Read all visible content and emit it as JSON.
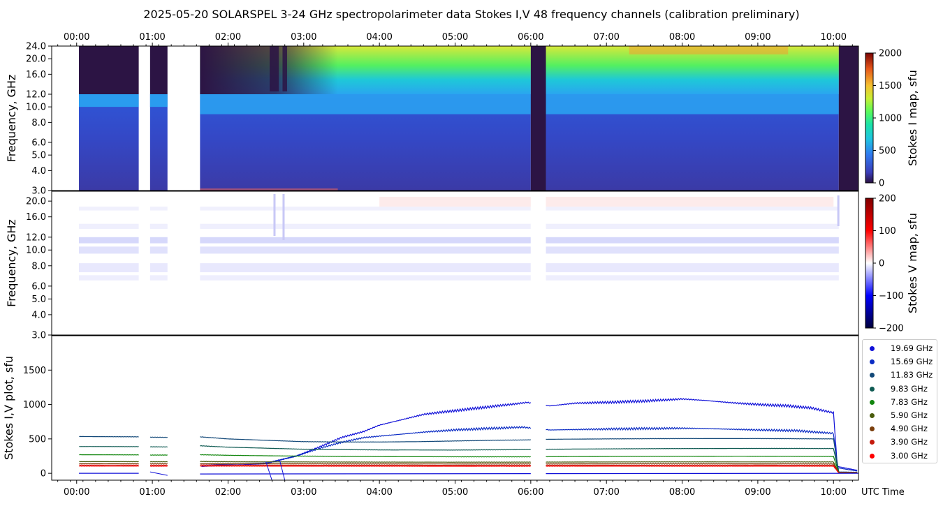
{
  "chart_data": [
    {
      "type": "heatmap",
      "title": "2025-05-20  SOLARSPEL  3-24 GHz spectropolarimeter data   Stokes I,V   48 frequency channels   (calibration preliminary)",
      "panel": "Stokes I map",
      "ylabel": "Frequency, GHz",
      "yscale": "log",
      "ylim": [
        3.0,
        24.0
      ],
      "yticks": [
        "3.0",
        "4.0",
        "5.0",
        "6.0",
        "8.0",
        "10.0",
        "12.0",
        "16.0",
        "20.0",
        "24.0"
      ],
      "ytick_values": [
        3,
        4,
        5,
        6,
        8,
        10,
        12,
        16,
        20,
        24
      ],
      "xticks": [
        "00:00",
        "01:00",
        "02:00",
        "03:00",
        "04:00",
        "05:00",
        "06:00",
        "07:00",
        "08:00",
        "09:00",
        "10:00"
      ],
      "xlim_hours": [
        -0.33,
        10.33
      ],
      "colorbar": {
        "label": "Stokes I map, sfu",
        "range": [
          0,
          2000
        ],
        "ticks": [
          "0",
          "500",
          "1000",
          "1500",
          "2000"
        ]
      },
      "data_gaps_hours": [
        [
          -0.33,
          0.03
        ],
        [
          0.82,
          0.97
        ],
        [
          1.2,
          1.63
        ]
      ],
      "dark_intervals_hours": [
        [
          6.0,
          6.2
        ],
        [
          10.07,
          10.33
        ]
      ]
    },
    {
      "type": "heatmap",
      "panel": "Stokes V map",
      "ylabel": "Frequency, GHz",
      "yscale": "log",
      "ylim": [
        3.0,
        23.0
      ],
      "yticks": [
        "3.0",
        "4.0",
        "5.0",
        "6.0",
        "8.0",
        "10.0",
        "12.0",
        "16.0",
        "20.0"
      ],
      "ytick_values": [
        3,
        4,
        5,
        6,
        8,
        10,
        12,
        16,
        20
      ],
      "colorbar": {
        "label": "Stokes V map, sfu",
        "range": [
          -200,
          200
        ],
        "ticks": [
          "−200",
          "−100",
          "0",
          "100",
          "200"
        ]
      }
    },
    {
      "type": "line",
      "panel": "Stokes I,V plot",
      "ylabel": "Stokes I,V plot, sfu",
      "xlabel": "UTC Time",
      "ylim": [
        -100,
        2000
      ],
      "yticks": [
        "0",
        "500",
        "1000",
        "1500"
      ],
      "ytick_values": [
        0,
        500,
        1000,
        1500
      ],
      "xticks": [
        "00:00",
        "01:00",
        "02:00",
        "03:00",
        "04:00",
        "05:00",
        "06:00",
        "07:00",
        "08:00",
        "09:00",
        "10:00"
      ],
      "series": [
        {
          "name": "19.69 GHz",
          "color": "#1010d8",
          "points": [
            [
              1.65,
              100
            ],
            [
              2.5,
              140
            ],
            [
              2.9,
              250
            ],
            [
              3.2,
              380
            ],
            [
              3.5,
              520
            ],
            [
              3.8,
              610
            ],
            [
              4.0,
              700
            ],
            [
              4.3,
              780
            ],
            [
              4.6,
              860
            ],
            [
              5.0,
              910
            ],
            [
              5.4,
              960
            ],
            [
              5.8,
              1010
            ],
            [
              5.95,
              1030
            ],
            [
              6.25,
              980
            ],
            [
              6.6,
              1020
            ],
            [
              7.0,
              1030
            ],
            [
              7.5,
              1050
            ],
            [
              8.0,
              1080
            ],
            [
              8.3,
              1060
            ],
            [
              8.6,
              1030
            ],
            [
              9.0,
              1000
            ],
            [
              9.4,
              980
            ],
            [
              9.7,
              950
            ],
            [
              10.0,
              880
            ],
            [
              10.05,
              100
            ],
            [
              10.33,
              40
            ]
          ]
        },
        {
          "name": "15.69 GHz",
          "color": "#0a2bc4",
          "points": [
            [
              1.65,
              120
            ],
            [
              2.5,
              150
            ],
            [
              2.9,
              250
            ],
            [
              3.2,
              360
            ],
            [
              3.5,
              450
            ],
            [
              3.8,
              520
            ],
            [
              4.2,
              560
            ],
            [
              4.6,
              600
            ],
            [
              5.0,
              630
            ],
            [
              5.4,
              650
            ],
            [
              5.9,
              670
            ],
            [
              6.25,
              630
            ],
            [
              6.8,
              640
            ],
            [
              7.5,
              650
            ],
            [
              8.0,
              655
            ],
            [
              8.5,
              645
            ],
            [
              9.0,
              630
            ],
            [
              9.5,
              620
            ],
            [
              10.0,
              580
            ],
            [
              10.05,
              80
            ],
            [
              10.33,
              30
            ]
          ]
        },
        {
          "name": "11.83 GHz",
          "color": "#124878",
          "points": [
            [
              -0.0,
              535
            ],
            [
              0.82,
              530
            ],
            [
              0.97,
              525
            ],
            [
              1.2,
              522
            ],
            [
              1.63,
              530
            ],
            [
              2.0,
              500
            ],
            [
              2.5,
              480
            ],
            [
              3.0,
              460
            ],
            [
              3.5,
              455
            ],
            [
              4.0,
              455
            ],
            [
              4.5,
              460
            ],
            [
              5.0,
              470
            ],
            [
              5.5,
              480
            ],
            [
              5.95,
              485
            ],
            [
              6.25,
              495
            ],
            [
              7.0,
              500
            ],
            [
              8.0,
              505
            ],
            [
              9.0,
              505
            ],
            [
              10.0,
              500
            ],
            [
              10.07,
              20
            ],
            [
              10.33,
              15
            ]
          ]
        },
        {
          "name": "9.83 GHz",
          "color": "#0e5a52",
          "points": [
            [
              -0.0,
              390
            ],
            [
              0.82,
              388
            ],
            [
              0.97,
              385
            ],
            [
              1.2,
              383
            ],
            [
              1.63,
              400
            ],
            [
              2.0,
              380
            ],
            [
              2.5,
              365
            ],
            [
              3.0,
              350
            ],
            [
              3.5,
              345
            ],
            [
              4.0,
              340
            ],
            [
              5.0,
              338
            ],
            [
              5.95,
              345
            ],
            [
              6.25,
              350
            ],
            [
              7.0,
              355
            ],
            [
              8.0,
              360
            ],
            [
              9.0,
              362
            ],
            [
              10.0,
              360
            ],
            [
              10.07,
              15
            ],
            [
              10.33,
              12
            ]
          ]
        },
        {
          "name": "7.83 GHz",
          "color": "#12860e",
          "points": [
            [
              -0.0,
              270
            ],
            [
              0.82,
              268
            ],
            [
              0.97,
              265
            ],
            [
              1.2,
              265
            ],
            [
              1.63,
              270
            ],
            [
              2.0,
              262
            ],
            [
              2.5,
              255
            ],
            [
              3.0,
              250
            ],
            [
              3.5,
              245
            ],
            [
              4.0,
              243
            ],
            [
              5.0,
              240
            ],
            [
              5.95,
              240
            ],
            [
              6.25,
              242
            ],
            [
              7.0,
              245
            ],
            [
              8.0,
              247
            ],
            [
              9.0,
              248
            ],
            [
              10.0,
              245
            ],
            [
              10.07,
              12
            ],
            [
              10.33,
              10
            ]
          ]
        },
        {
          "name": "5.90 GHz",
          "color": "#4a5c0c",
          "points": [
            [
              -0.0,
              170
            ],
            [
              0.82,
              170
            ],
            [
              0.97,
              168
            ],
            [
              1.2,
              168
            ],
            [
              1.63,
              172
            ],
            [
              2.0,
              168
            ],
            [
              3.0,
              165
            ],
            [
              4.0,
              163
            ],
            [
              5.0,
              162
            ],
            [
              6.25,
              163
            ],
            [
              7.0,
              165
            ],
            [
              8.0,
              166
            ],
            [
              9.0,
              166
            ],
            [
              10.0,
              165
            ],
            [
              10.07,
              10
            ],
            [
              10.33,
              8
            ]
          ]
        },
        {
          "name": "4.90 GHz",
          "color": "#7a3e0c",
          "points": [
            [
              -0.0,
              140
            ],
            [
              0.82,
              140
            ],
            [
              0.97,
              138
            ],
            [
              1.2,
              138
            ],
            [
              1.63,
              142
            ],
            [
              2.0,
              140
            ],
            [
              3.0,
              138
            ],
            [
              4.0,
              137
            ],
            [
              5.0,
              136
            ],
            [
              6.25,
              137
            ],
            [
              7.0,
              138
            ],
            [
              8.0,
              138
            ],
            [
              9.0,
              138
            ],
            [
              10.0,
              137
            ],
            [
              10.07,
              8
            ],
            [
              10.33,
              6
            ]
          ]
        },
        {
          "name": "3.90 GHz",
          "color": "#c41a0c",
          "points": [
            [
              -0.0,
              120
            ],
            [
              0.82,
              120
            ],
            [
              0.97,
              119
            ],
            [
              1.2,
              119
            ],
            [
              1.63,
              122
            ],
            [
              2.0,
              120
            ],
            [
              3.0,
              118
            ],
            [
              4.0,
              118
            ],
            [
              5.0,
              117
            ],
            [
              6.25,
              118
            ],
            [
              7.0,
              118
            ],
            [
              8.0,
              119
            ],
            [
              9.0,
              119
            ],
            [
              10.0,
              118
            ],
            [
              10.07,
              6
            ],
            [
              10.33,
              5
            ]
          ]
        },
        {
          "name": "3.00 GHz",
          "color": "#ff0000",
          "points": [
            [
              -0.0,
              105
            ],
            [
              0.82,
              105
            ],
            [
              0.97,
              104
            ],
            [
              1.2,
              104
            ],
            [
              1.63,
              106
            ],
            [
              2.0,
              105
            ],
            [
              3.0,
              104
            ],
            [
              4.0,
              104
            ],
            [
              5.0,
              103
            ],
            [
              6.25,
              104
            ],
            [
              7.0,
              104
            ],
            [
              8.0,
              104
            ],
            [
              9.0,
              104
            ],
            [
              10.0,
              104
            ],
            [
              10.07,
              5
            ],
            [
              10.33,
              4
            ]
          ]
        }
      ]
    }
  ]
}
